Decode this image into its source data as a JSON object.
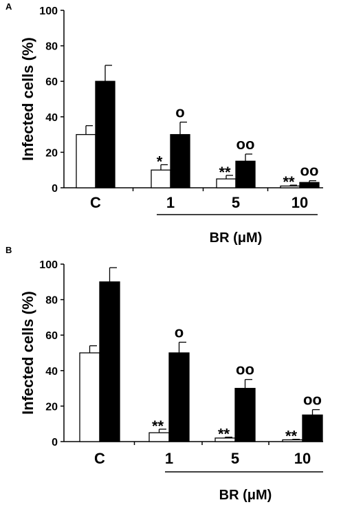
{
  "chart_data": [
    {
      "panel": "A",
      "type": "bar",
      "ylabel": "Infected cells (%)",
      "ylim": [
        0,
        100
      ],
      "yticks": [
        0,
        20,
        40,
        60,
        80,
        100
      ],
      "categories": [
        "C",
        "1",
        "5",
        "10"
      ],
      "group_label": "BR (μM)",
      "series": [
        {
          "fill": "#ffffff",
          "values": [
            30,
            10,
            5,
            1
          ],
          "errors": [
            5,
            3,
            2,
            0.5
          ],
          "annotations": [
            "",
            "*",
            "**",
            "**"
          ]
        },
        {
          "fill": "#000000",
          "values": [
            60,
            30,
            15,
            3
          ],
          "errors": [
            9,
            7,
            4,
            1
          ],
          "annotations": [
            "",
            "o",
            "oo",
            "oo"
          ]
        }
      ]
    },
    {
      "panel": "B",
      "type": "bar",
      "ylabel": "Infected cells (%)",
      "ylim": [
        0,
        100
      ],
      "yticks": [
        0,
        20,
        40,
        60,
        80,
        100
      ],
      "categories": [
        "C",
        "1",
        "5",
        "10"
      ],
      "group_label": "BR (μM)",
      "series": [
        {
          "fill": "#ffffff",
          "values": [
            50,
            5,
            2,
            1
          ],
          "errors": [
            4,
            2,
            0.5,
            0.3
          ],
          "annotations": [
            "",
            "**",
            "**",
            "**"
          ]
        },
        {
          "fill": "#000000",
          "values": [
            90,
            50,
            30,
            15
          ],
          "errors": [
            8,
            6,
            5,
            3
          ],
          "annotations": [
            "",
            "o",
            "oo",
            "oo"
          ]
        }
      ]
    }
  ]
}
